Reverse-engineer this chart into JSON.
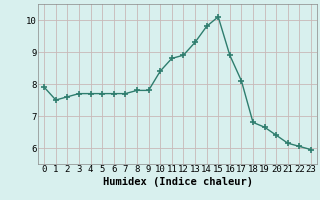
{
  "x": [
    0,
    1,
    2,
    3,
    4,
    5,
    6,
    7,
    8,
    9,
    10,
    11,
    12,
    13,
    14,
    15,
    16,
    17,
    18,
    19,
    20,
    21,
    22,
    23
  ],
  "y": [
    7.9,
    7.5,
    7.6,
    7.7,
    7.7,
    7.7,
    7.7,
    7.7,
    7.8,
    7.8,
    8.4,
    8.8,
    8.9,
    9.3,
    9.8,
    10.1,
    8.9,
    8.1,
    6.8,
    6.65,
    6.4,
    6.15,
    6.05,
    5.95
  ],
  "xlabel": "Humidex (Indice chaleur)",
  "xlim": [
    -0.5,
    23.5
  ],
  "ylim": [
    5.5,
    10.5
  ],
  "yticks": [
    6,
    7,
    8,
    9,
    10
  ],
  "xticks": [
    0,
    1,
    2,
    3,
    4,
    5,
    6,
    7,
    8,
    9,
    10,
    11,
    12,
    13,
    14,
    15,
    16,
    17,
    18,
    19,
    20,
    21,
    22,
    23
  ],
  "line_color": "#2e7d6e",
  "marker": "+",
  "marker_size": 4,
  "line_width": 1.0,
  "bg_color": "#d8f0ee",
  "grid_color": "#c8b8b8",
  "xlabel_fontsize": 7.5,
  "tick_fontsize": 6.5
}
